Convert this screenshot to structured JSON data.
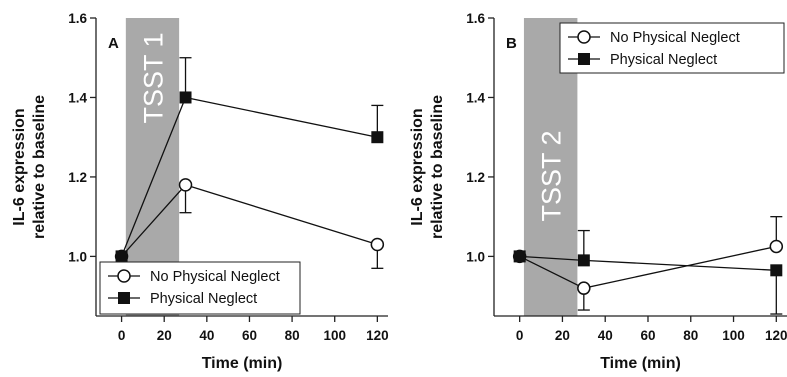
{
  "chart_data": [
    {
      "type": "line",
      "panel_label": "A",
      "xlabel": "Time (min)",
      "ylabel": [
        "IL-6 expression",
        "relative to baseline"
      ],
      "xlim": [
        -12,
        125
      ],
      "ylim": [
        0.85,
        1.6
      ],
      "xticks": [
        0,
        20,
        40,
        60,
        80,
        100,
        120
      ],
      "yticks": [
        1.0,
        1.2,
        1.4,
        1.6
      ],
      "ytick_labels": [
        "1.0",
        "1.2",
        "1.4",
        "1.6"
      ],
      "shaded_band": {
        "label": "TSST 1",
        "x0": 2,
        "x1": 27,
        "color": "#a9a9a9"
      },
      "legend_position": "bottom-left",
      "series": [
        {
          "name": "No Physical Neglect",
          "marker": "open-circle",
          "x": [
            0,
            30,
            120
          ],
          "values": [
            1.0,
            1.18,
            1.03
          ],
          "err_up": [
            0,
            0,
            0
          ],
          "err_down": [
            0,
            0.07,
            0.06
          ]
        },
        {
          "name": "Physical Neglect",
          "marker": "filled-square",
          "x": [
            0,
            30,
            120
          ],
          "values": [
            1.0,
            1.4,
            1.3
          ],
          "err_up": [
            0,
            0.1,
            0.08
          ],
          "err_down": [
            0,
            0,
            0
          ]
        }
      ]
    },
    {
      "type": "line",
      "panel_label": "B",
      "xlabel": "Time (min)",
      "ylabel": [
        "IL-6 expression",
        "relative to baseline"
      ],
      "xlim": [
        -12,
        125
      ],
      "ylim": [
        0.85,
        1.6
      ],
      "xticks": [
        0,
        20,
        40,
        60,
        80,
        100,
        120
      ],
      "yticks": [
        1.0,
        1.2,
        1.4,
        1.6
      ],
      "ytick_labels": [
        "1.0",
        "1.2",
        "1.4",
        "1.6"
      ],
      "shaded_band": {
        "label": "TSST 2",
        "x0": 2,
        "x1": 27,
        "color": "#a9a9a9"
      },
      "legend_position": "top-right",
      "series": [
        {
          "name": "No Physical Neglect",
          "marker": "open-circle",
          "x": [
            0,
            30,
            120
          ],
          "values": [
            1.0,
            0.92,
            1.025
          ],
          "err_up": [
            0,
            0,
            0.075
          ],
          "err_down": [
            0,
            0.055,
            0
          ]
        },
        {
          "name": "Physical Neglect",
          "marker": "filled-square",
          "x": [
            0,
            30,
            120
          ],
          "values": [
            1.0,
            0.99,
            0.965
          ],
          "err_up": [
            0,
            0.075,
            0
          ],
          "err_down": [
            0,
            0,
            0.11
          ]
        }
      ]
    }
  ]
}
